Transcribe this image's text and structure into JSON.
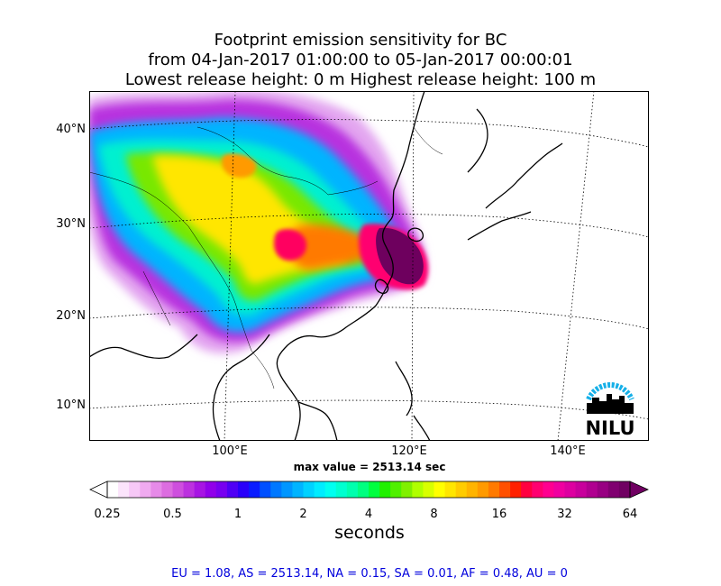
{
  "title": {
    "line1": "Footprint emission sensitivity for BC",
    "line2": "from 04-Jan-2017 01:00:00 to 05-Jan-2017 00:00:01",
    "line3": "Lowest release height: 0 m      Highest release height: 100 m"
  },
  "map": {
    "lat_labels": [
      "40°N",
      "30°N",
      "20°N",
      "10°N"
    ],
    "lon_labels": [
      "100°E",
      "120°E",
      "140°E"
    ],
    "logo_text": "NILU",
    "max_value_text": "max value = 2513.14 sec"
  },
  "colorbar": {
    "ticks": [
      "0.25",
      "0.5",
      "1",
      "2",
      "4",
      "8",
      "16",
      "32",
      "64"
    ],
    "unit": "seconds",
    "colors": [
      "#ffffff",
      "#fbe4fb",
      "#f6c8f6",
      "#f0aaf0",
      "#e68ae8",
      "#dc6de0",
      "#ce4fde",
      "#bc31df",
      "#a714e3",
      "#9100ea",
      "#7800f0",
      "#5000f5",
      "#2a00fa",
      "#0a1cff",
      "#0050ff",
      "#0078ff",
      "#0096ff",
      "#00b4ff",
      "#00d2ff",
      "#00ecff",
      "#00fff0",
      "#00ffd0",
      "#00ffae",
      "#00ff80",
      "#00ff40",
      "#20f000",
      "#50f000",
      "#80f000",
      "#b0ff00",
      "#d8ff00",
      "#ffff00",
      "#ffe600",
      "#ffcc00",
      "#ffb400",
      "#ff9a00",
      "#ff7a00",
      "#ff5000",
      "#ff2000",
      "#ff0040",
      "#ff0070",
      "#ff0090",
      "#f000a0",
      "#dd00a0",
      "#c8009c",
      "#b00090",
      "#980082",
      "#800070",
      "#700062"
    ]
  },
  "stats": "EU = 1.08,  AS = 2513.14,  NA = 0.15,  SA = 0.01,  AF = 0.48,  AU = 0"
}
